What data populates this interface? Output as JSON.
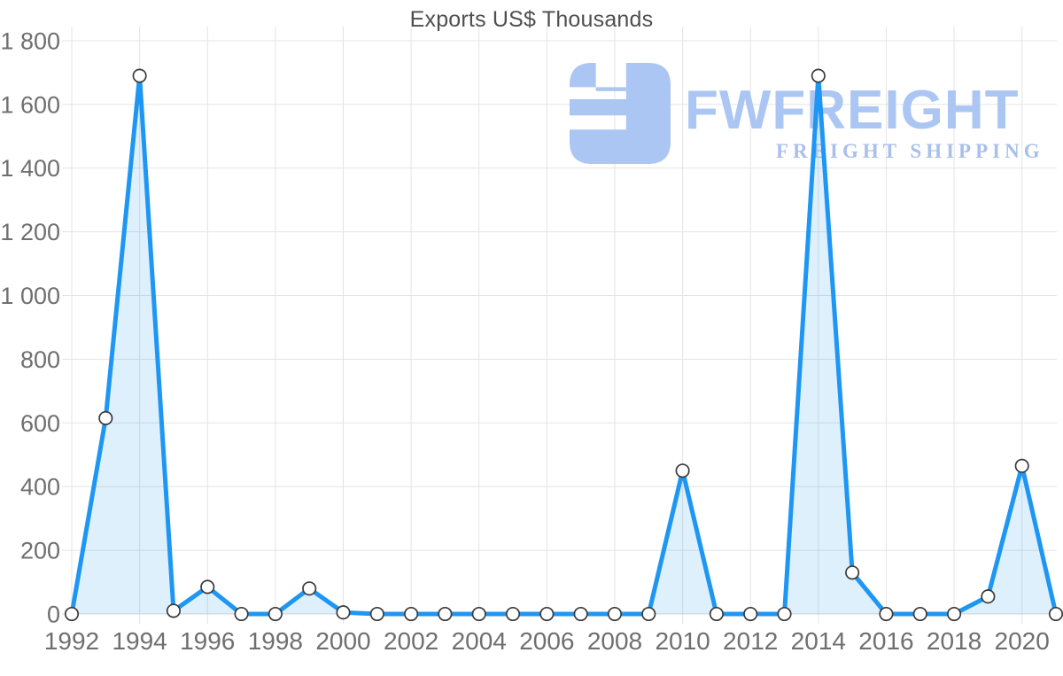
{
  "page": {
    "background": "#ffffff"
  },
  "chart": {
    "title": "Exports US$ Thousands"
  },
  "watermark": {
    "logo_icon": "fwfreight-logo",
    "brand": "FWFREIGHT",
    "tagline": "FREIGHT SHIPPING",
    "brand_color": "#abc6f2",
    "tagline_color": "#a9bfec"
  },
  "chart_data": {
    "type": "area",
    "title": "Exports US$ Thousands",
    "xlabel": "",
    "ylabel": "",
    "x": [
      1992,
      1993,
      1994,
      1995,
      1996,
      1997,
      1998,
      1999,
      2000,
      2001,
      2002,
      2003,
      2004,
      2005,
      2006,
      2007,
      2008,
      2009,
      2010,
      2011,
      2012,
      2013,
      2014,
      2015,
      2016,
      2017,
      2018,
      2019,
      2020,
      2021
    ],
    "values": [
      0,
      615,
      1690,
      10,
      85,
      0,
      0,
      80,
      5,
      0,
      0,
      0,
      0,
      0,
      0,
      0,
      0,
      0,
      450,
      0,
      0,
      0,
      1690,
      130,
      0,
      0,
      0,
      55,
      465,
      0
    ],
    "ylim": [
      0,
      1800
    ],
    "y_ticks": [
      0,
      200,
      400,
      600,
      800,
      1000,
      1200,
      1400,
      1600,
      1800
    ],
    "y_tick_labels": [
      "0",
      "200",
      "400",
      "600",
      "800",
      "1 000",
      "1 200",
      "1 400",
      "1 600",
      "1 800"
    ],
    "x_tick_labels": [
      "1992",
      "1994",
      "1996",
      "1998",
      "2000",
      "2002",
      "2004",
      "2006",
      "2008",
      "2010",
      "2012",
      "2014",
      "2016",
      "2018",
      "2020"
    ],
    "grid": true,
    "legend": "none",
    "colors": {
      "line": "#1e96f3",
      "fill": "rgba(30,150,243,0.14)",
      "marker_fill": "#ffffff",
      "marker_stroke": "#3a3a3a",
      "grid": "#e4e4e4",
      "axis_line": "#d8d8d8",
      "axis_text": "#6f6f6f",
      "title_text": "#4f4f4f"
    }
  }
}
